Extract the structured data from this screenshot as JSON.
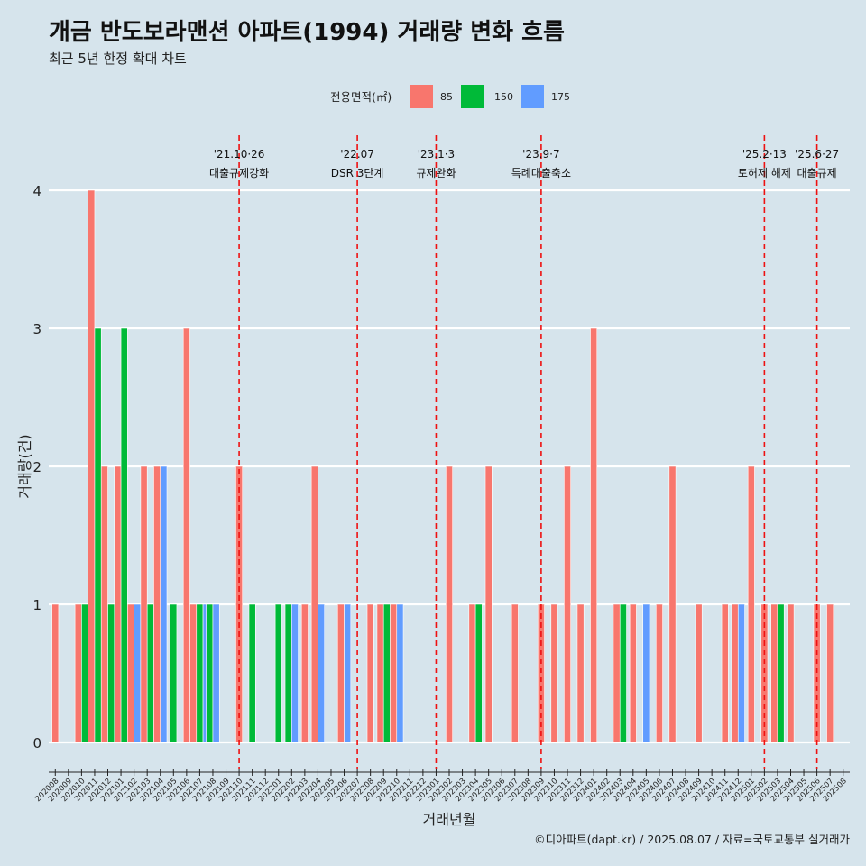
{
  "header": {
    "title": "개금 반도보라맨션 아파트(1994) 거래량 변화 흐름",
    "subtitle": "최근 5년 한정 확대 차트"
  },
  "legend": {
    "title": "전용면적(㎡)",
    "items": [
      {
        "label": "85",
        "color": "#f8766d"
      },
      {
        "label": "150",
        "color": "#00ba38"
      },
      {
        "label": "175",
        "color": "#619cff"
      }
    ]
  },
  "caption": "©디아파트(dapt.kr) / 2025.08.07 / 자료=국토교통부 실거래가",
  "events": [
    {
      "date": "202110",
      "line1": "'21.10·26",
      "line2": "대출규제강화"
    },
    {
      "date": "202207",
      "line1": "'22.07",
      "line2": "DSR 3단계"
    },
    {
      "date": "202301",
      "line1": "'23.1·3",
      "line2": "규제완화"
    },
    {
      "date": "202309",
      "line1": "'23.9·7",
      "line2": "특례대출축소"
    },
    {
      "date": "202502",
      "line1": "'25.2·13",
      "line2": "토허제 해제"
    },
    {
      "date": "202506",
      "line1": "'25.6·27",
      "line2": "대출규제"
    }
  ],
  "chart_data": {
    "type": "bar",
    "title": "개금 반도보라맨션 아파트(1994) 거래량 변화 흐름",
    "xlabel": "거래년월",
    "ylabel": "거래량(건)",
    "ylim": [
      0,
      4
    ],
    "yticks": [
      0,
      1,
      2,
      3,
      4
    ],
    "grid": true,
    "legend_position": "top",
    "categories": [
      "202008",
      "202009",
      "202010",
      "202011",
      "202012",
      "202101",
      "202102",
      "202103",
      "202104",
      "202105",
      "202106",
      "202107",
      "202108",
      "202109",
      "202110",
      "202111",
      "202112",
      "202201",
      "202202",
      "202203",
      "202204",
      "202205",
      "202206",
      "202207",
      "202208",
      "202209",
      "202210",
      "202211",
      "202212",
      "202301",
      "202302",
      "202303",
      "202304",
      "202305",
      "202306",
      "202307",
      "202308",
      "202309",
      "202310",
      "202311",
      "202312",
      "202401",
      "202402",
      "202403",
      "202404",
      "202405",
      "202406",
      "202407",
      "202408",
      "202409",
      "202410",
      "202411",
      "202412",
      "202501",
      "202502",
      "202503",
      "202504",
      "202505",
      "202506",
      "202507",
      "202508"
    ],
    "series": [
      {
        "name": "85",
        "color": "#f8766d",
        "values": [
          1,
          0,
          1,
          4,
          2,
          2,
          1,
          2,
          2,
          0,
          3,
          1,
          0,
          0,
          2,
          0,
          0,
          0,
          0,
          1,
          2,
          0,
          1,
          0,
          1,
          1,
          1,
          0,
          0,
          0,
          2,
          0,
          1,
          2,
          0,
          1,
          0,
          1,
          1,
          2,
          1,
          3,
          0,
          1,
          1,
          0,
          1,
          2,
          0,
          1,
          0,
          1,
          1,
          2,
          1,
          1,
          1,
          0,
          1,
          1,
          0
        ]
      },
      {
        "name": "150",
        "color": "#00ba38",
        "values": [
          0,
          0,
          1,
          3,
          1,
          3,
          0,
          1,
          0,
          1,
          0,
          1,
          1,
          0,
          0,
          1,
          0,
          1,
          1,
          0,
          0,
          0,
          0,
          0,
          0,
          1,
          0,
          0,
          0,
          0,
          0,
          0,
          1,
          0,
          0,
          0,
          0,
          0,
          0,
          0,
          0,
          0,
          0,
          1,
          0,
          0,
          0,
          0,
          0,
          0,
          0,
          0,
          0,
          0,
          0,
          1,
          0,
          0,
          0,
          0,
          0
        ]
      },
      {
        "name": "175",
        "color": "#619cff",
        "values": [
          0,
          0,
          0,
          0,
          0,
          0,
          1,
          0,
          2,
          0,
          0,
          1,
          1,
          0,
          0,
          0,
          0,
          0,
          1,
          0,
          1,
          0,
          1,
          0,
          0,
          0,
          1,
          0,
          0,
          0,
          0,
          0,
          0,
          0,
          0,
          0,
          0,
          0,
          0,
          0,
          0,
          0,
          0,
          0,
          0,
          1,
          0,
          0,
          0,
          0,
          0,
          0,
          1,
          0,
          0,
          0,
          0,
          0,
          0,
          0,
          0
        ]
      }
    ]
  }
}
